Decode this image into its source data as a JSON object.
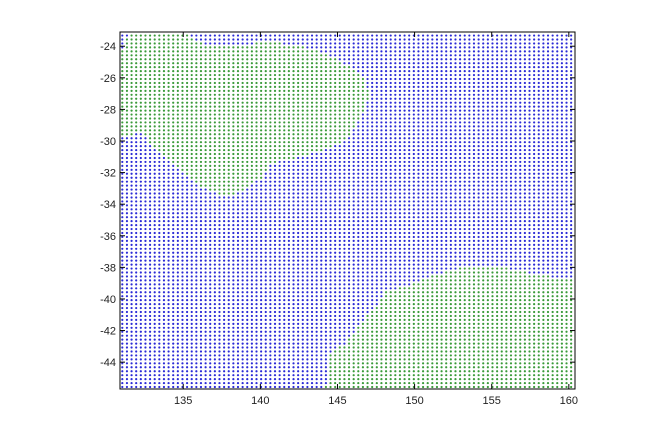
{
  "chart_data": {
    "type": "scatter",
    "title": "",
    "xlabel": "",
    "ylabel": "",
    "xlim": [
      130.9,
      160.4
    ],
    "ylim": [
      -45.7,
      -23.1
    ],
    "grid": false,
    "legend": "none",
    "grid_spacing": {
      "dx": 0.3,
      "dy": 0.25
    },
    "xticks": [
      135,
      140,
      145,
      150,
      155,
      160
    ],
    "yticks": [
      -24,
      -26,
      -28,
      -30,
      -32,
      -34,
      -36,
      -38,
      -40,
      -42,
      -44
    ],
    "xtick_labels": [
      "135",
      "140",
      "145",
      "150",
      "155",
      "160"
    ],
    "ytick_labels": [
      "-24",
      "-26",
      "-28",
      "-30",
      "-32",
      "-34",
      "-36",
      "-38",
      "-40",
      "-42",
      "-44"
    ],
    "series": [
      {
        "color": "#2b2bd6",
        "marker": "dot",
        "description_of_points": "regular grid covering the whole plot region except the green regions"
      },
      {
        "color": "#3a9a3a",
        "marker": "dot",
        "regions": [
          {
            "polygon": [
              [
                131.0,
                -24.2
              ],
              [
                131.5,
                -23.1
              ],
              [
                135.0,
                -23.1
              ],
              [
                136.1,
                -23.8
              ],
              [
                138.5,
                -24.0
              ],
              [
                140.5,
                -23.7
              ],
              [
                142.5,
                -24.0
              ],
              [
                144.3,
                -24.5
              ],
              [
                145.7,
                -25.2
              ],
              [
                146.7,
                -26.0
              ],
              [
                147.1,
                -27.0
              ],
              [
                146.8,
                -28.0
              ],
              [
                146.2,
                -29.1
              ],
              [
                145.6,
                -30.0
              ],
              [
                144.3,
                -30.5
              ],
              [
                142.5,
                -31.0
              ],
              [
                140.7,
                -31.4
              ],
              [
                140.0,
                -32.4
              ],
              [
                138.7,
                -33.3
              ],
              [
                137.5,
                -33.5
              ],
              [
                136.4,
                -33.0
              ],
              [
                135.5,
                -32.5
              ],
              [
                134.2,
                -31.4
              ],
              [
                132.9,
                -30.2
              ],
              [
                132.3,
                -29.5
              ],
              [
                131.0,
                -29.7
              ]
            ]
          },
          {
            "polygon": [
              [
                144.2,
                -45.7
              ],
              [
                144.5,
                -43.5
              ],
              [
                145.5,
                -42.8
              ],
              [
                146.5,
                -41.5
              ],
              [
                147.4,
                -40.6
              ],
              [
                148.2,
                -39.5
              ],
              [
                150.0,
                -39.0
              ],
              [
                151.5,
                -38.4
              ],
              [
                153.0,
                -38.0
              ],
              [
                155.5,
                -37.9
              ],
              [
                157.5,
                -38.4
              ],
              [
                159.0,
                -38.6
              ],
              [
                160.4,
                -38.6
              ],
              [
                160.4,
                -45.7
              ]
            ]
          }
        ]
      }
    ]
  }
}
